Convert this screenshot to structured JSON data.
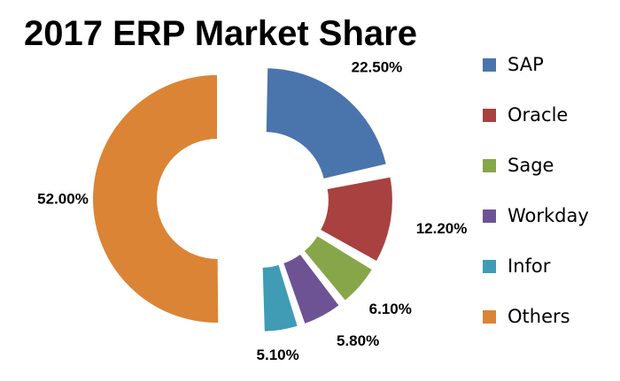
{
  "chart_data": {
    "type": "pie",
    "title": "2017 ERP Market Share",
    "variant": "donut-exploded",
    "start_angle_deg": 0,
    "direction": "clockwise",
    "legend_position": "right",
    "slices": [
      {
        "name": "SAP",
        "value": 22.5,
        "label": "22.50%",
        "color": "#4A74AC"
      },
      {
        "name": "Oracle",
        "value": 12.2,
        "label": "12.20%",
        "color": "#A8413F"
      },
      {
        "name": "Sage",
        "value": 6.1,
        "label": "6.10%",
        "color": "#87A64A"
      },
      {
        "name": "Workday",
        "value": 5.8,
        "label": "5.80%",
        "color": "#6D5393"
      },
      {
        "name": "Infor",
        "value": 5.1,
        "label": "5.10%",
        "color": "#3F9CB4"
      },
      {
        "name": "Others",
        "value": 52.0,
        "label": "52.00%",
        "color": "#DB8435"
      }
    ]
  }
}
